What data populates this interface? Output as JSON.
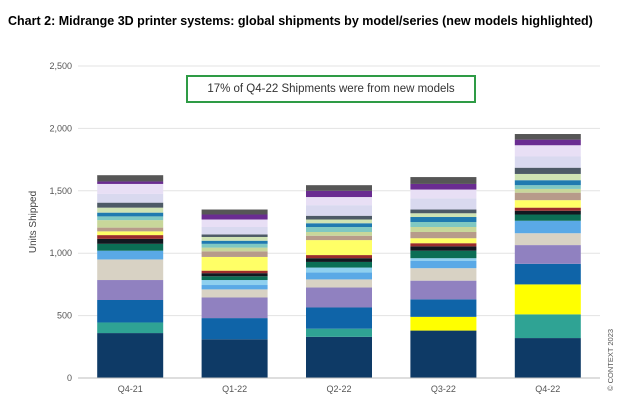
{
  "title": "Chart 2: Midrange 3D printer systems: global shipments by model/series (new models highlighted)",
  "annotation": "17% of Q4-22 Shipments were from new models",
  "copyright": "© CONTEXT 2023",
  "chart_data": {
    "type": "bar",
    "stacked": true,
    "categories": [
      "Q4-21",
      "Q1-22",
      "Q2-22",
      "Q3-22",
      "Q4-22"
    ],
    "ylabel": "Units Shipped",
    "ylim": [
      0,
      2500
    ],
    "yticks": [
      "0",
      "500",
      "1,000",
      "1,500",
      "2,000",
      "2,500"
    ],
    "ytick_values": [
      0,
      500,
      1000,
      1500,
      2000,
      2500
    ],
    "grid": true,
    "legend": "none",
    "series": [
      {
        "color": "#0e3a66",
        "values": [
          360,
          310,
          330,
          380,
          320
        ]
      },
      {
        "color": "#2fa394",
        "values": [
          85,
          0,
          65,
          0,
          190
        ]
      },
      {
        "color": "#ffff00",
        "values": [
          0,
          0,
          0,
          110,
          240
        ]
      },
      {
        "color": "#0f64a8",
        "values": [
          180,
          170,
          170,
          140,
          165
        ]
      },
      {
        "color": "#9081c0",
        "values": [
          160,
          165,
          160,
          150,
          150
        ]
      },
      {
        "color": "#d8d2c4",
        "values": [
          165,
          65,
          65,
          100,
          95
        ]
      },
      {
        "color": "#5aa9e6",
        "values": [
          70,
          35,
          55,
          60,
          100
        ]
      },
      {
        "color": "#8fd0ef",
        "values": [
          0,
          40,
          40,
          20,
          0
        ]
      },
      {
        "color": "#0b6e55",
        "values": [
          55,
          30,
          45,
          60,
          50
        ]
      },
      {
        "color": "#111820",
        "values": [
          40,
          25,
          30,
          35,
          30
        ]
      },
      {
        "color": "#9b2c2c",
        "values": [
          30,
          20,
          25,
          25,
          25
        ]
      },
      {
        "color": "#ffff66",
        "values": [
          30,
          110,
          120,
          40,
          60
        ]
      },
      {
        "color": "#b79b8a",
        "values": [
          30,
          45,
          35,
          50,
          60
        ]
      },
      {
        "color": "#c8d79a",
        "values": [
          60,
          30,
          30,
          40,
          30
        ]
      },
      {
        "color": "#7fc8c2",
        "values": [
          30,
          30,
          40,
          40,
          30
        ]
      },
      {
        "color": "#1f7ab0",
        "values": [
          30,
          25,
          30,
          40,
          40
        ]
      },
      {
        "color": "#cfe3b3",
        "values": [
          40,
          30,
          30,
          30,
          50
        ]
      },
      {
        "color": "#4d5a66",
        "values": [
          40,
          20,
          30,
          30,
          50
        ]
      },
      {
        "color": "#d9d9ef",
        "values": [
          70,
          60,
          85,
          90,
          90
        ]
      },
      {
        "color": "#e8dff5",
        "values": [
          80,
          60,
          65,
          70,
          90
        ]
      },
      {
        "color": "#6a2c91",
        "values": [
          20,
          40,
          50,
          45,
          45
        ]
      },
      {
        "color": "#565656",
        "values": [
          50,
          40,
          45,
          55,
          45
        ]
      }
    ]
  }
}
